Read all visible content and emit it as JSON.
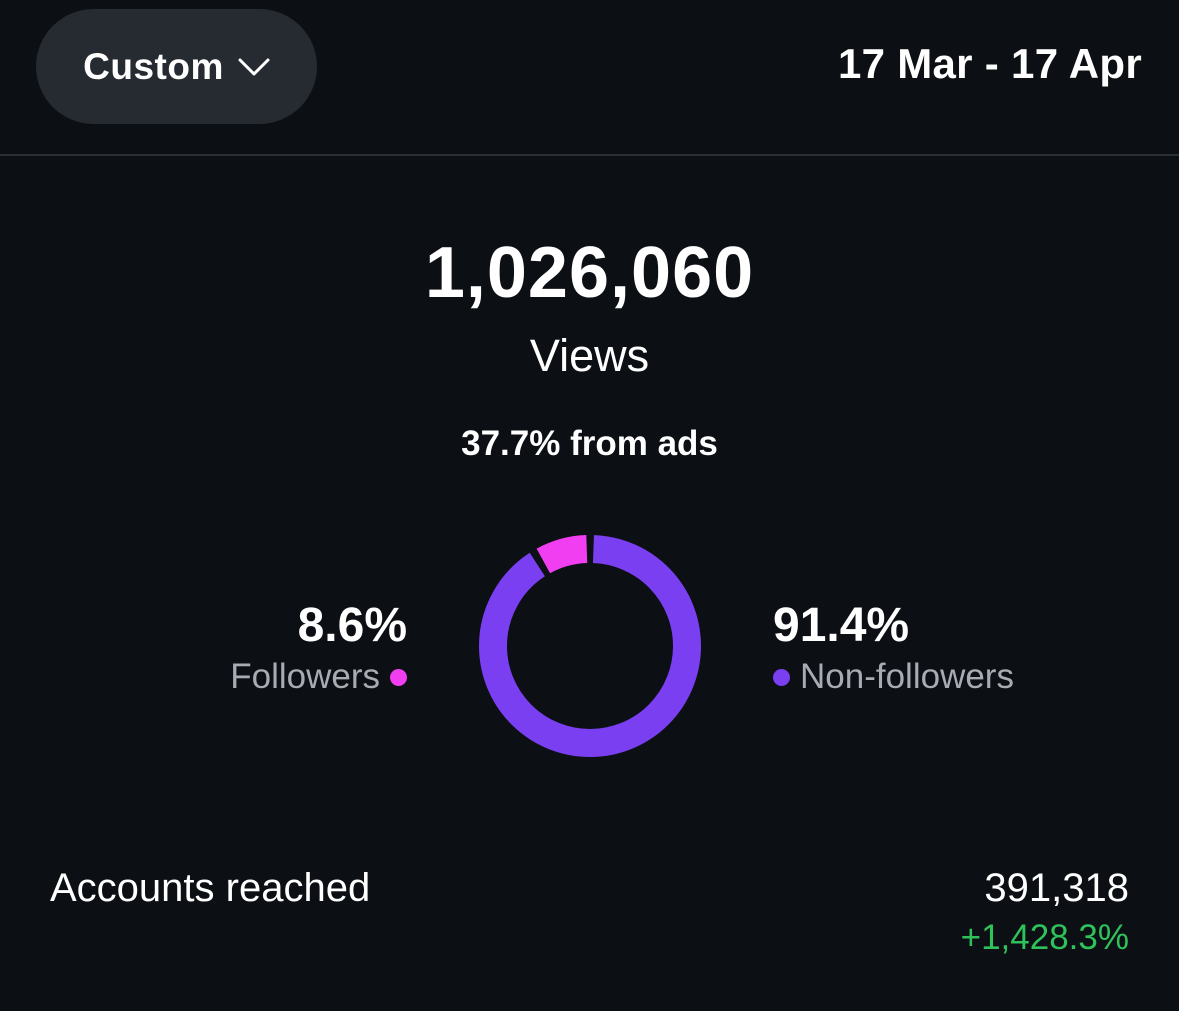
{
  "header": {
    "range_label": "Custom",
    "range_icon": "chevron-down-icon",
    "date_range": "17 Mar - 17 Apr"
  },
  "views": {
    "total": "1,026,060",
    "label": "Views",
    "ads_share": "37.7% from ads"
  },
  "audience": {
    "followers": {
      "percent": "8.6%",
      "label": "Followers",
      "value": 8.6,
      "color": "#f03ef0"
    },
    "non_followers": {
      "percent": "91.4%",
      "label": "Non-followers",
      "value": 91.4,
      "color": "#7b3ff2"
    }
  },
  "accounts_reached": {
    "label": "Accounts reached",
    "value": "391,318",
    "change": "+1,428.3%",
    "change_color": "#2fc25b"
  }
}
